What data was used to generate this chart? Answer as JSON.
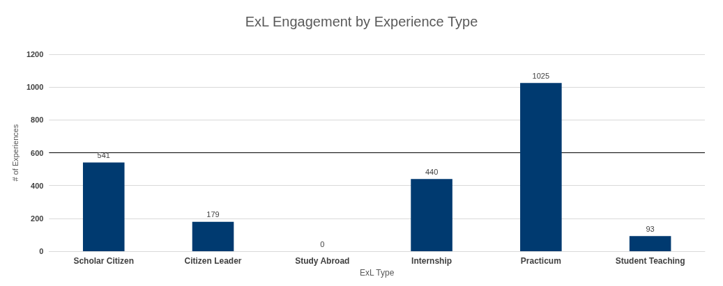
{
  "chart_data": {
    "type": "bar",
    "title": "ExL Engagement by Experience Type",
    "xlabel": "ExL Type",
    "ylabel": "# of Experiences",
    "categories": [
      "Scholar Citizen",
      "Citizen Leader",
      "Study Abroad",
      "Internship",
      "Practicum",
      "Student Teaching"
    ],
    "values": [
      541,
      179,
      0,
      440,
      1025,
      93
    ],
    "color": "#003a70",
    "ylim": [
      0,
      1200
    ],
    "yticks": [
      0,
      200,
      400,
      600,
      800,
      1000,
      1200
    ],
    "grid": "y",
    "data_labels": true,
    "ref_lines": [
      {
        "axis": "y",
        "value": 600,
        "color": "#000000"
      }
    ]
  }
}
